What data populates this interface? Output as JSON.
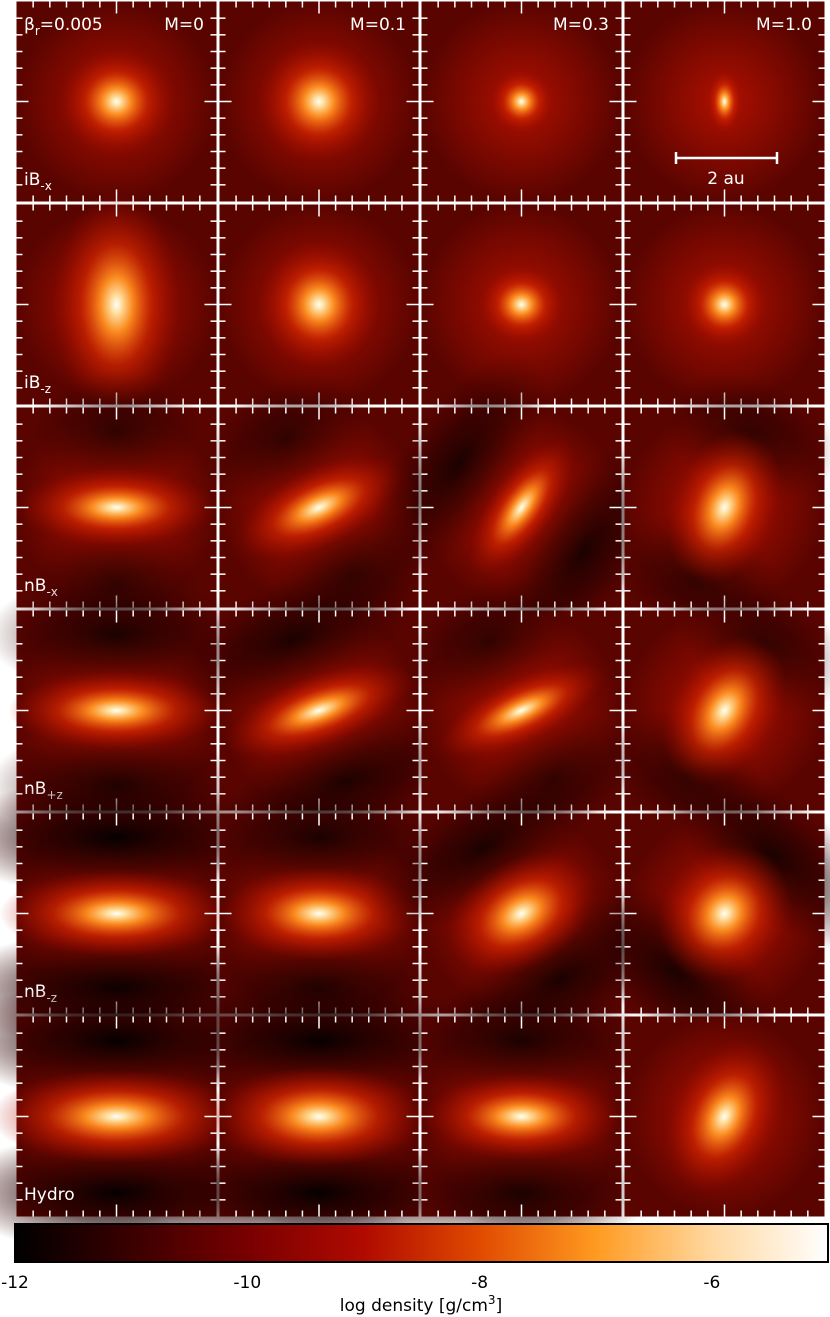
{
  "beta": {
    "symbol": "β",
    "sub": "r",
    "value": "=0.005"
  },
  "columns": [
    "M=0",
    "M=0.1",
    "M=0.3",
    "M=1.0"
  ],
  "rows": [
    {
      "name": "iB",
      "sub": "-x"
    },
    {
      "name": "iB",
      "sub": "-z"
    },
    {
      "name": "nB",
      "sub": "-x"
    },
    {
      "name": "nB",
      "sub": "+z"
    },
    {
      "name": "nB",
      "sub": "-z"
    },
    {
      "name": "Hydro"
    }
  ],
  "scale_bar": "2 au",
  "colorbar": {
    "label": "log density [g/cm",
    "label_sup": "3",
    "label_end": "]",
    "lim": [
      -12,
      -5
    ],
    "ticks": [
      -12,
      -10,
      -8,
      -6
    ],
    "colors": [
      "#000000",
      "#3a0000",
      "#780000",
      "#b00a00",
      "#e04a00",
      "#ff9a20",
      "#ffd8a0",
      "#ffffff"
    ]
  }
}
